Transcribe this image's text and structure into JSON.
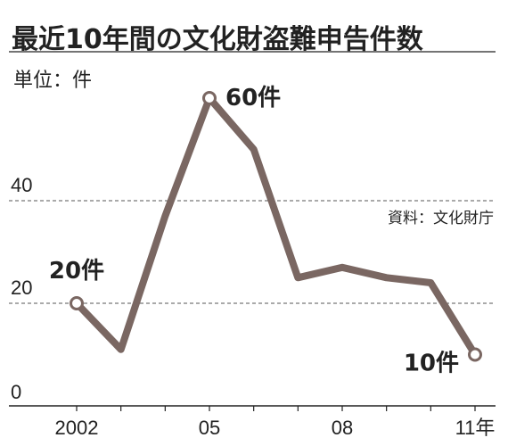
{
  "chart_data": {
    "type": "line",
    "title": "最近10年間の文化財盗難申告件数",
    "unit_label": "単位：件",
    "source": "資料：文化財庁",
    "x": [
      2002,
      2003,
      2004,
      2005,
      2006,
      2007,
      2008,
      2009,
      2010,
      2011
    ],
    "x_tick_labels": [
      {
        "x": 2002,
        "label": "2002"
      },
      {
        "x": 2005,
        "label": "05"
      },
      {
        "x": 2008,
        "label": "08"
      },
      {
        "x": 2011,
        "label": "11年"
      }
    ],
    "y_ticks": [
      0,
      20,
      40
    ],
    "ylim": [
      0,
      60
    ],
    "grid": "dashed horizontal at 20 and 40",
    "series": [
      {
        "values": [
          20,
          11,
          37,
          60,
          50,
          25,
          27,
          25,
          24,
          10
        ],
        "color": "#7a6762"
      }
    ],
    "point_labels": [
      {
        "x": 2002,
        "text": "20件"
      },
      {
        "x": 2005,
        "text": "60件"
      },
      {
        "x": 2011,
        "text": "10件"
      }
    ]
  }
}
